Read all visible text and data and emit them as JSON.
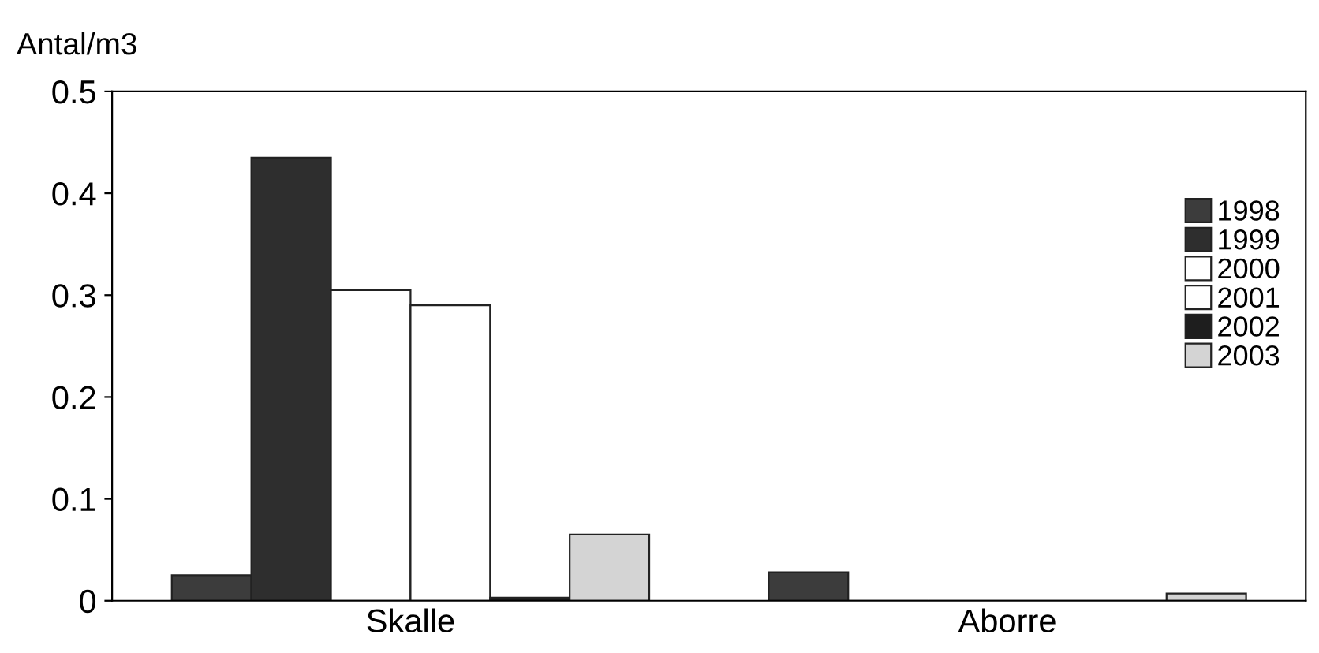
{
  "chart_data": {
    "type": "bar",
    "ylabel": "Antal/m3",
    "categories": [
      "Skalle",
      "Aborre"
    ],
    "series": [
      {
        "name": "1998",
        "color": "#3c3c3c",
        "values": [
          0.025,
          0.028
        ]
      },
      {
        "name": "1999",
        "color": "#2e2e2e",
        "values": [
          0.435,
          0
        ]
      },
      {
        "name": "2000",
        "color": "#ffffff",
        "values": [
          0.305,
          0
        ]
      },
      {
        "name": "2001",
        "color": "#ffffff",
        "values": [
          0.29,
          0
        ]
      },
      {
        "name": "2002",
        "color": "#1e1e1e",
        "values": [
          0.003,
          0
        ]
      },
      {
        "name": "2003",
        "color": "#d4d4d4",
        "values": [
          0.065,
          0.007
        ]
      }
    ],
    "ylim": [
      0,
      0.5
    ],
    "yticks": [
      0,
      0.1,
      0.2,
      0.3,
      0.4,
      0.5
    ],
    "grid": false,
    "legend": "right"
  }
}
